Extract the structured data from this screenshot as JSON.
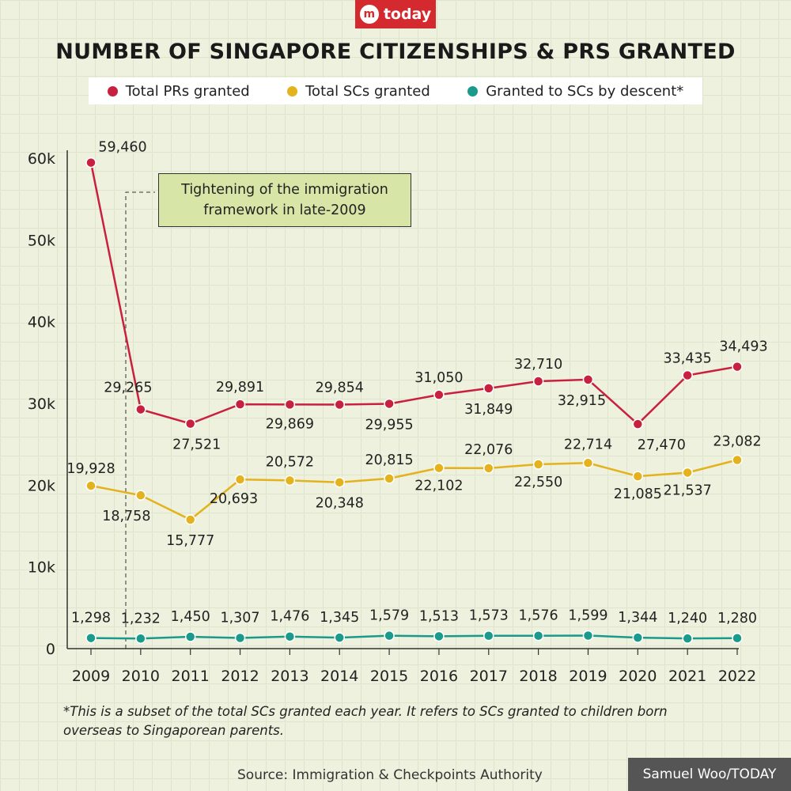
{
  "logo": {
    "mark": "m",
    "text": "today"
  },
  "chart_data": {
    "type": "line",
    "title": "NUMBER OF SINGAPORE CITIZENSHIPS & PRS GRANTED",
    "x": [
      "2009",
      "2010",
      "2011",
      "2012",
      "2013",
      "2014",
      "2015",
      "2016",
      "2017",
      "2018",
      "2019",
      "2020",
      "2021",
      "2022"
    ],
    "ylim": [
      0,
      60000
    ],
    "yticks": [
      0,
      10000,
      20000,
      30000,
      40000,
      50000,
      60000
    ],
    "ytick_labels": [
      "0",
      "10k",
      "20k",
      "30k",
      "40k",
      "50k",
      "60k"
    ],
    "grid": true,
    "legend_position": "top",
    "series": [
      {
        "name": "Total PRs granted",
        "color": "#c8203f",
        "values": [
          59460,
          29265,
          27521,
          29891,
          29869,
          29854,
          29955,
          31050,
          31849,
          32710,
          32915,
          27470,
          33435,
          34493
        ],
        "labels": [
          "59,460",
          "29,265",
          "27,521",
          "29,891",
          "29,869",
          "29,854",
          "29,955",
          "31,050",
          "31,849",
          "32,710",
          "32,915",
          "27,470",
          "33,435",
          "34,493"
        ]
      },
      {
        "name": "Total SCs granted",
        "color": "#e3b21c",
        "values": [
          19928,
          18758,
          15777,
          20693,
          20572,
          20348,
          20815,
          22102,
          22076,
          22550,
          22714,
          21085,
          21537,
          23082
        ],
        "labels": [
          "19,928",
          "18,758",
          "15,777",
          "20,693",
          "20,572",
          "20,348",
          "20,815",
          "22,102",
          "22,076",
          "22,550",
          "22,714",
          "21,085",
          "21,537",
          "23,082"
        ]
      },
      {
        "name": "Granted to SCs by descent*",
        "color": "#1a9a8a",
        "values": [
          1298,
          1232,
          1450,
          1307,
          1476,
          1345,
          1579,
          1513,
          1573,
          1576,
          1599,
          1344,
          1240,
          1280
        ],
        "labels": [
          "1,298",
          "1,232",
          "1,450",
          "1,307",
          "1,476",
          "1,345",
          "1,579",
          "1,513",
          "1,573",
          "1,576",
          "1,599",
          "1,344",
          "1,240",
          "1,280"
        ]
      }
    ],
    "annotation": "Tightening of the immigration framework in late-2009"
  },
  "footnote": "*This is a subset of the total SCs granted each year. It refers to SCs granted to children born overseas to Singaporean parents.",
  "source": "Source: Immigration & Checkpoints Authority",
  "credit": "Samuel Woo/TODAY"
}
